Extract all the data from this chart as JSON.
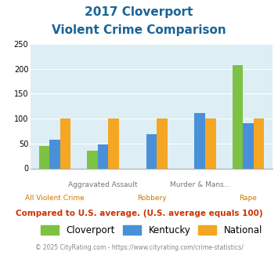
{
  "title_line1": "2017 Cloverport",
  "title_line2": "Violent Crime Comparison",
  "top_labels": [
    "",
    "Aggravated Assault",
    "",
    "Murder & Mans...",
    ""
  ],
  "bottom_labels": [
    "All Violent Crime",
    "",
    "Robbery",
    "",
    "Rape"
  ],
  "cloverport": [
    45,
    35,
    0,
    0,
    208
  ],
  "kentucky": [
    58,
    48,
    68,
    112,
    90
  ],
  "national": [
    100,
    100,
    100,
    100,
    100
  ],
  "cloverport_color": "#7dc242",
  "kentucky_color": "#4a90d9",
  "national_color": "#f5a623",
  "ylim": [
    0,
    250
  ],
  "yticks": [
    0,
    50,
    100,
    150,
    200,
    250
  ],
  "bg_color": "#ddeef5",
  "title_color": "#1a6496",
  "subtitle_note": "Compared to U.S. average. (U.S. average equals 100)",
  "subtitle_note_color": "#cc3300",
  "footer_left": "© 2025 CityRating.com - ",
  "footer_right": "https://www.cityrating.com/crime-statistics/",
  "footer_link_color": "#4a90d9",
  "footer_color": "#888888",
  "legend_labels": [
    "Cloverport",
    "Kentucky",
    "National"
  ],
  "bar_width": 0.22
}
